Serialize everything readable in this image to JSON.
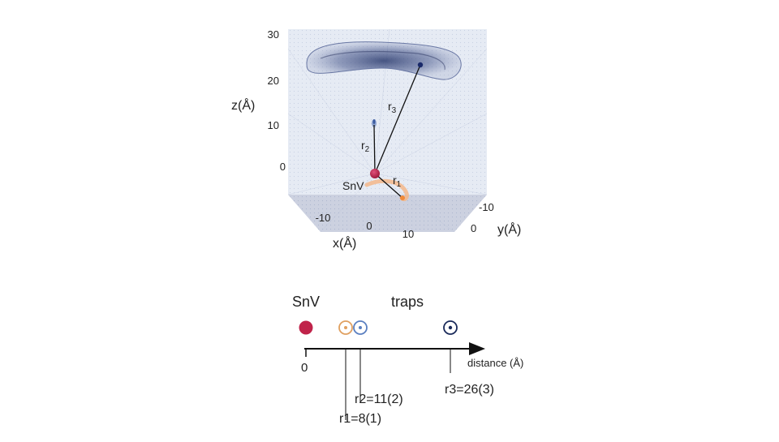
{
  "plot3d": {
    "axes": {
      "z": {
        "label": "z(Å)",
        "ticks": [
          "30",
          "20",
          "10",
          "0"
        ]
      },
      "x": {
        "label": "x(Å)",
        "ticks": [
          "-10",
          "0",
          "10"
        ]
      },
      "y": {
        "label": "y(Å)",
        "ticks": [
          "-10",
          "0"
        ]
      }
    },
    "labels": {
      "defect": "SnV",
      "r1": "r",
      "r1_sub": "1",
      "r2": "r",
      "r2_sub": "2",
      "r3": "r",
      "r3_sub": "3"
    },
    "colors": {
      "box": "#dde3f0",
      "floor": "#c9cede",
      "snv": "#c0234a",
      "r1": "#f0a060",
      "r2": "#5a7fc0",
      "r3": "#1a2a5a"
    }
  },
  "axis1d": {
    "left_label": "SnV",
    "right_label": "traps",
    "axis_label": "distance (Å)",
    "zero_label": "0",
    "markers": [
      {
        "name": "r1",
        "label": "r1=8(1)",
        "value": 8,
        "color": "#e0a060"
      },
      {
        "name": "r2",
        "label": "r2=11(2)",
        "value": 11,
        "color": "#5a7fc0"
      },
      {
        "name": "r3",
        "label": "r3=26(3)",
        "value": 26,
        "color": "#1a2a5a"
      }
    ],
    "snv_color": "#c0234a"
  }
}
